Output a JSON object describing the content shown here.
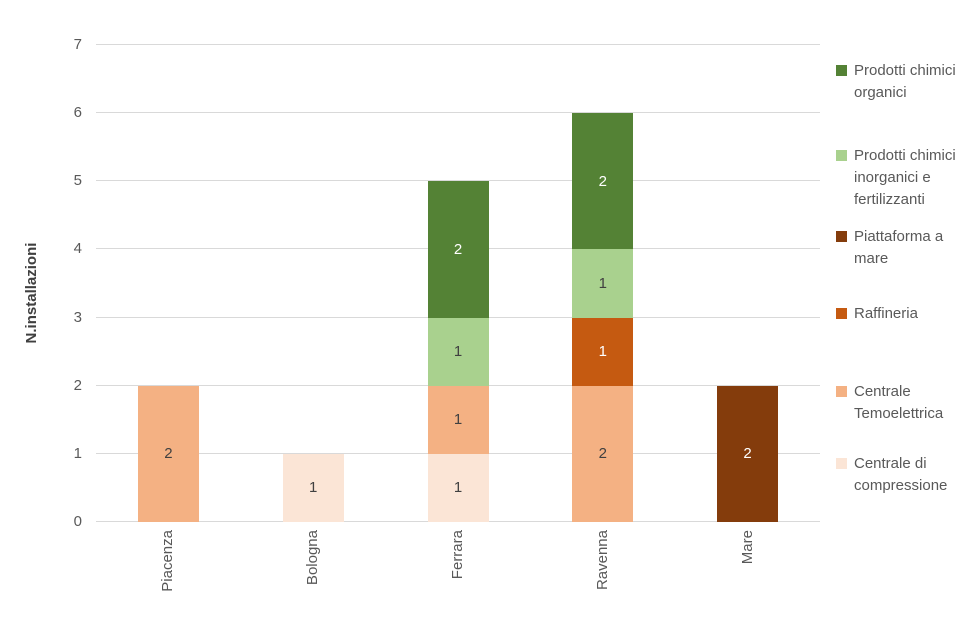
{
  "chart_data": {
    "type": "bar",
    "stacked": true,
    "title": "",
    "xlabel": "",
    "ylabel": "N.installazioni",
    "ylim": [
      0,
      7
    ],
    "yticks": [
      0,
      1,
      2,
      3,
      4,
      5,
      6,
      7
    ],
    "grid": true,
    "gridline_color": "#D9D9D9",
    "axis_text_color": "#595959",
    "data_labels": true,
    "legend_position": "right",
    "categories": [
      "Piacenza",
      "Bologna",
      "Ferrara",
      "Ravenna",
      "Mare"
    ],
    "category_totals": [
      2,
      1,
      5,
      6,
      2
    ],
    "series": [
      {
        "name": "Centrale di compressione",
        "color": "#FBE5D6",
        "label_color": "#404040",
        "values": [
          0,
          1,
          1,
          0,
          0
        ]
      },
      {
        "name": "Centrale Temoelettrica",
        "color": "#F4B183",
        "label_color": "#404040",
        "values": [
          2,
          0,
          1,
          2,
          0
        ]
      },
      {
        "name": "Raffineria",
        "color": "#C55A11",
        "label_color": "#FFFFFF",
        "values": [
          0,
          0,
          0,
          1,
          0
        ]
      },
      {
        "name": "Piattaforma a mare",
        "color": "#843C0C",
        "label_color": "#FFFFFF",
        "values": [
          0,
          0,
          0,
          0,
          2
        ]
      },
      {
        "name": "Prodotti chimici inorganici e fertilizzanti",
        "color": "#A9D18E",
        "label_color": "#404040",
        "values": [
          0,
          0,
          1,
          1,
          0
        ]
      },
      {
        "name": "Prodotti chimici organici",
        "color": "#548235",
        "label_color": "#FFFFFF",
        "values": [
          0,
          0,
          2,
          2,
          0
        ]
      }
    ]
  },
  "legend": {
    "items": [
      {
        "label": "Prodotti chimici organici",
        "color": "#548235"
      },
      {
        "label": "Prodotti chimici inorganici e fertilizzanti",
        "color": "#A9D18E"
      },
      {
        "label": "Piattaforma a mare",
        "color": "#843C0C"
      },
      {
        "label": "Raffineria",
        "color": "#C55A11"
      },
      {
        "label": "Centrale Temoelettrica",
        "color": "#F4B183"
      },
      {
        "label": "Centrale di compressione",
        "color": "#FBE5D6"
      }
    ]
  }
}
